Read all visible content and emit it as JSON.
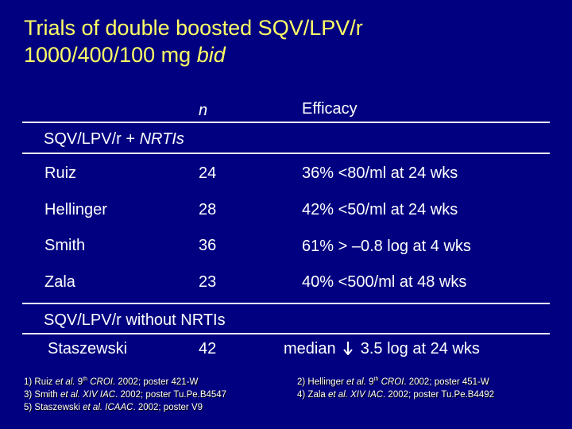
{
  "title": {
    "line1": "Trials of double boosted SQV/LPV/r",
    "line2_prefix": "1000/400/100 mg ",
    "line2_italic": "bid"
  },
  "header": {
    "n": "n",
    "efficacy": "Efficacy"
  },
  "section1": {
    "prefix": "SQV/LPV/r + ",
    "italic": "NRTIs"
  },
  "rows": [
    {
      "name": "Ruiz",
      "n": "24",
      "efficacy": "36% <80/ml at 24 wks"
    },
    {
      "name": "Hellinger",
      "n": "28",
      "efficacy": "42% <50/ml at 24 wks"
    },
    {
      "name": "Smith",
      "n": "36",
      "efficacy": "61% > –0.8 log at 4 wks"
    },
    {
      "name": "Zala",
      "n": "23",
      "efficacy": "40% <500/ml at 48 wks"
    }
  ],
  "section2": {
    "label": "SQV/LPV/r without NRTIs",
    "name": "Staszewski",
    "n": "42",
    "efficacy_prefix": "median",
    "efficacy_suffix": "3.5 log at 24 wks",
    "arrow_icon": "down-arrow-icon"
  },
  "footnotes_left": [
    {
      "num": "1) Ruiz ",
      "etal": "et al. ",
      "sup_pre": "9",
      "sup": "th",
      "conf": " CROI",
      "rest": ". 2002; poster 421-W"
    },
    {
      "num": "3) Smith ",
      "etal": "et al. ",
      "sup_pre": "",
      "sup": "",
      "conf": "XIV IAC",
      "rest": ". 2002; poster Tu.Pe.B4547"
    },
    {
      "num": "5) Staszewski ",
      "etal": "et al. ",
      "sup_pre": "",
      "sup": "",
      "conf": "ICAAC",
      "rest": ". 2002; poster V9"
    }
  ],
  "footnotes_right": [
    {
      "num": "2) Hellinger ",
      "etal": "et al. ",
      "sup_pre": "9",
      "sup": "th",
      "conf": " CROI",
      "rest": ". 2002; poster 451-W"
    },
    {
      "num": "4) Zala ",
      "etal": "et al. ",
      "sup_pre": "",
      "sup": "",
      "conf": "XIV IAC",
      "rest": ". 2002; poster Tu.Pe.B4492"
    }
  ],
  "colors": {
    "background": "#000080",
    "title": "#ffff66",
    "text": "#ffffff"
  }
}
